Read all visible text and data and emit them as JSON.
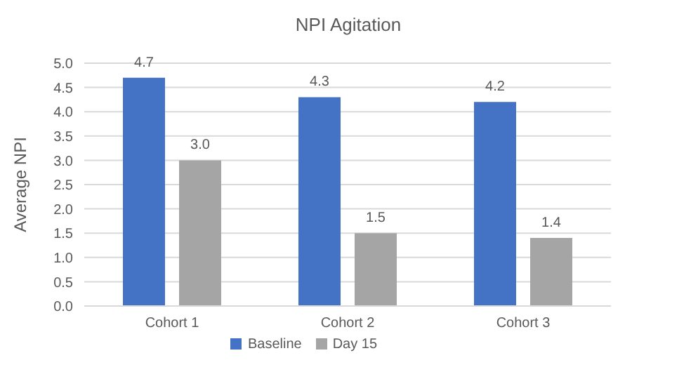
{
  "chart_data": {
    "type": "bar",
    "title": "NPI Agitation",
    "ylabel": "Average NPI",
    "categories": [
      "Cohort 1",
      "Cohort 2",
      "Cohort 3"
    ],
    "series": [
      {
        "name": "Baseline",
        "color": "#4472c4",
        "values": [
          4.7,
          4.3,
          4.2
        ],
        "value_labels": [
          "4.7",
          "4.3",
          "4.2"
        ]
      },
      {
        "name": "Day 15",
        "color": "#a5a5a5",
        "values": [
          3.0,
          1.5,
          1.4
        ],
        "value_labels": [
          "3.0",
          "1.5",
          "1.4"
        ]
      }
    ],
    "ylim": [
      0,
      5
    ],
    "yticks": [
      {
        "value": 0,
        "label": "0.0"
      },
      {
        "value": 0.5,
        "label": "0.5"
      },
      {
        "value": 1,
        "label": "1.0"
      },
      {
        "value": 1.5,
        "label": "1.5"
      },
      {
        "value": 2,
        "label": "2.0"
      },
      {
        "value": 2.5,
        "label": "2.5"
      },
      {
        "value": 3,
        "label": "3.0"
      },
      {
        "value": 3.5,
        "label": "3.5"
      },
      {
        "value": 4,
        "label": "4.0"
      },
      {
        "value": 4.5,
        "label": "4.5"
      },
      {
        "value": 5,
        "label": "5.0"
      }
    ],
    "grid": "y",
    "legend": "bottom"
  }
}
